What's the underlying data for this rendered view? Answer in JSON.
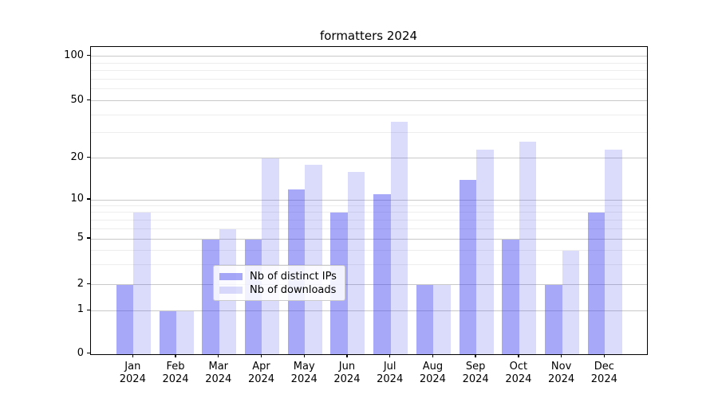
{
  "title": "formatters 2024",
  "legend": {
    "items": [
      {
        "label": "Nb of distinct IPs",
        "color": "rgba(62,62,240,0.45)"
      },
      {
        "label": "Nb of downloads",
        "color": "rgba(62,62,240,0.19)"
      }
    ]
  },
  "chart_data": {
    "type": "bar",
    "title": "formatters 2024",
    "categories": [
      "Jan 2024",
      "Feb 2024",
      "Mar 2024",
      "Apr 2024",
      "May 2024",
      "Jun 2024",
      "Jul 2024",
      "Aug 2024",
      "Sep 2024",
      "Oct 2024",
      "Nov 2024",
      "Dec 2024"
    ],
    "x_tick_line1": [
      "Jan",
      "Feb",
      "Mar",
      "Apr",
      "May",
      "Jun",
      "Jul",
      "Aug",
      "Sep",
      "Oct",
      "Nov",
      "Dec"
    ],
    "x_tick_line2": "2024",
    "series": [
      {
        "name": "Nb of distinct IPs",
        "color": "rgba(62,62,240,0.45)",
        "values": [
          2,
          1,
          5,
          5,
          12,
          8,
          11,
          2,
          14,
          5,
          2,
          8
        ]
      },
      {
        "name": "Nb of downloads",
        "color": "rgba(62,62,240,0.19)",
        "values": [
          8,
          1,
          6,
          20,
          18,
          16,
          36,
          2,
          23,
          26,
          4,
          23
        ]
      }
    ],
    "xlabel": "",
    "ylabel": "",
    "yscale": "log-with-zero",
    "yticks": [
      0,
      1,
      2,
      5,
      10,
      20,
      50,
      100
    ],
    "ytick_labels": [
      "0",
      "1",
      "2",
      "5",
      "10",
      "20",
      "50",
      "100"
    ],
    "minor_yticks": [
      3,
      4,
      6,
      7,
      8,
      9,
      30,
      40,
      60,
      70,
      80,
      90
    ],
    "ylim": [
      0,
      110
    ],
    "grid": true,
    "legend_position": "lower center"
  }
}
